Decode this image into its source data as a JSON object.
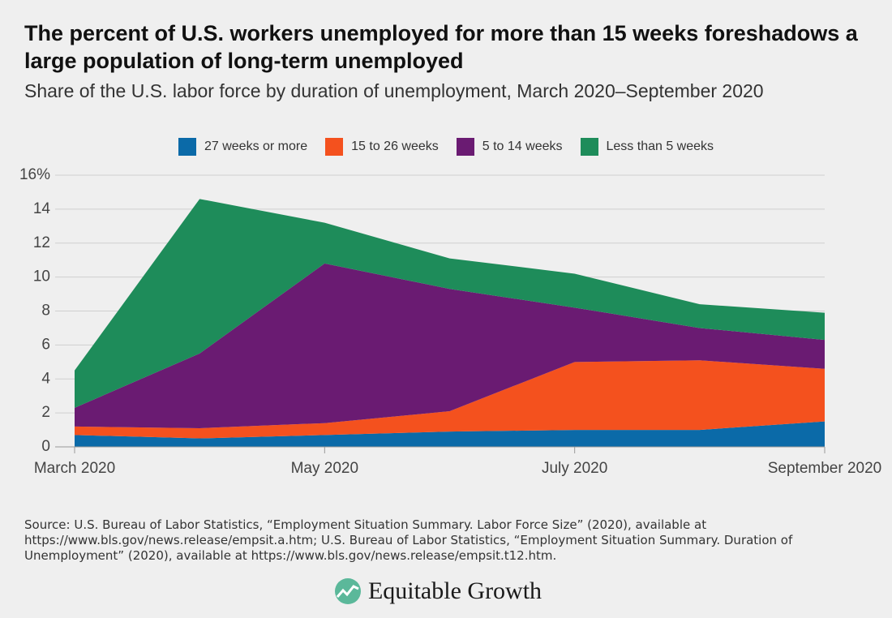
{
  "chart_data": {
    "type": "stacked_area",
    "title": "The percent of U.S. workers unemployed for more than 15 weeks foreshadows a large population of long-term unemployed",
    "subtitle": "Share of the U.S. labor force by duration of unemployment, March 2020–September 2020",
    "categories": [
      "March 2020",
      null,
      "May 2020",
      null,
      "July 2020",
      null,
      "September 2020"
    ],
    "series": [
      {
        "name": "27 weeks or more",
        "color": "#0b6aa8",
        "values": [
          0.7,
          0.5,
          0.7,
          0.9,
          1.0,
          1.0,
          1.5
        ]
      },
      {
        "name": "15 to 26 weeks",
        "color": "#f4511e",
        "values": [
          0.5,
          0.6,
          0.7,
          1.2,
          4.0,
          4.1,
          3.1
        ]
      },
      {
        "name": "5 to 14 weeks",
        "color": "#6a1b72",
        "values": [
          1.1,
          4.4,
          9.4,
          7.2,
          3.2,
          1.9,
          1.7
        ]
      },
      {
        "name": "Less than 5 weeks",
        "color": "#1e8c5a",
        "values": [
          2.2,
          9.1,
          2.4,
          1.8,
          2.0,
          1.4,
          1.6
        ]
      }
    ],
    "ylim": [
      0,
      16
    ],
    "yticks": [
      0,
      2,
      4,
      6,
      8,
      10,
      12,
      14,
      {
        "value": 16,
        "label": "16%"
      }
    ],
    "grid": true,
    "legend": "top",
    "source": "Source: U.S. Bureau of Labor Statistics, “Employment Situation Summary. Labor Force Size” (2020), available at https://www.bls.gov/news.release/empsit.a.htm; U.S. Bureau of Labor Statistics, “Employment Situation Summary. Duration of Unemployment” (2020), available at https://www.bls.gov/news.release/empsit.t12.htm.",
    "branding": "Equitable Growth"
  }
}
